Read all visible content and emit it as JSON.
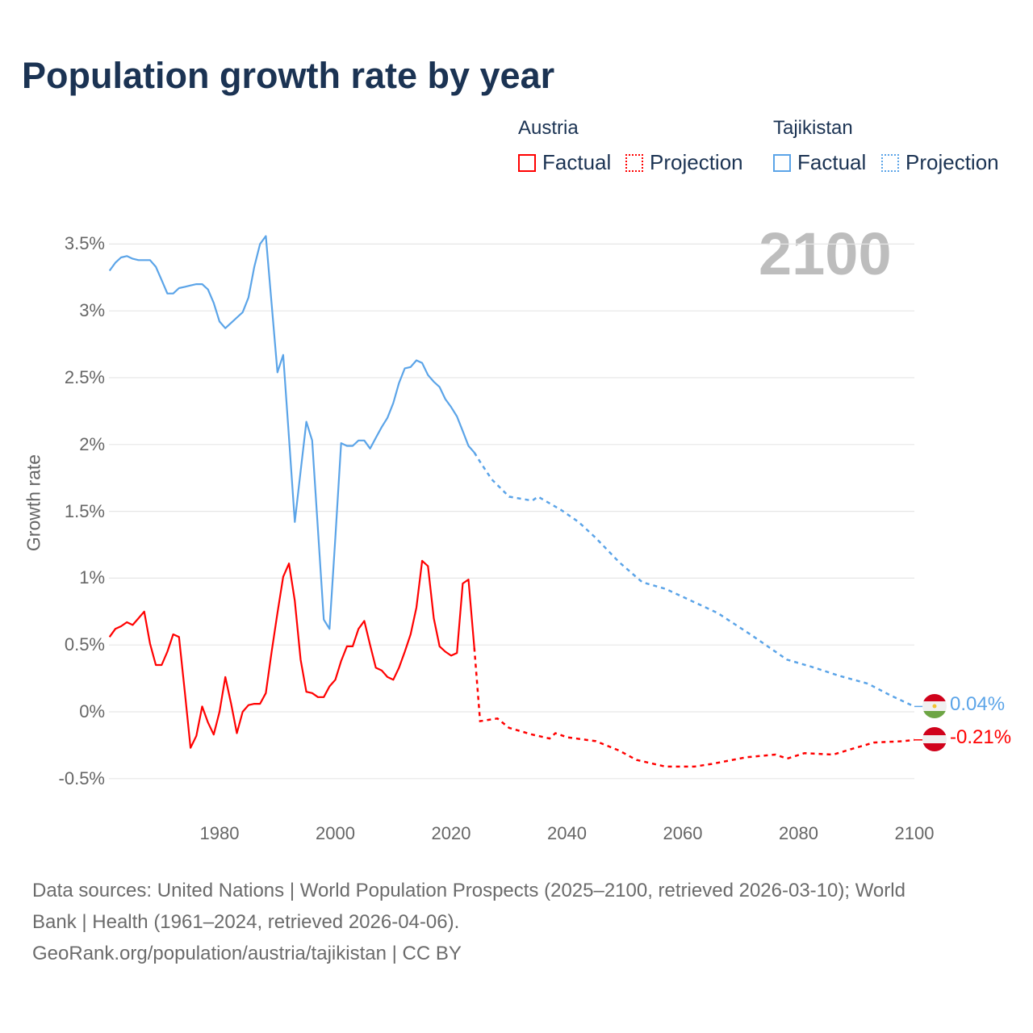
{
  "title": "Population growth rate by year",
  "legend": {
    "groups": [
      {
        "country": "Austria",
        "factual": "Factual",
        "projection": "Projection",
        "color": "#ff0000"
      },
      {
        "country": "Tajikistan",
        "factual": "Factual",
        "projection": "Projection",
        "color": "#5ba4e8"
      }
    ]
  },
  "current_year_label": "2100",
  "end_labels": {
    "tajikistan": "0.04%",
    "austria": "-0.21%"
  },
  "footer": {
    "line1": "Data sources: United Nations | World Population Prospects (2025–2100, retrieved 2026-03-10); World",
    "line2": "Bank | Health (1961–2024, retrieved 2026-04-06).",
    "line3": "GeoRank.org/population/austria/tajikistan | CC BY"
  },
  "chart_data": {
    "type": "line",
    "title": "Population growth rate by year",
    "xlabel": "",
    "ylabel": "Growth rate",
    "xlim": [
      1961,
      2100
    ],
    "ylim": [
      -0.6,
      3.6
    ],
    "grid": true,
    "legend_position": "top-right",
    "x_ticks": [
      1980,
      2000,
      2020,
      2040,
      2060,
      2080,
      2100
    ],
    "x_tick_labels": [
      "1980",
      "2000",
      "2020",
      "2040",
      "2060",
      "2080",
      "2100"
    ],
    "y_ticks": [
      -0.5,
      0,
      0.5,
      1,
      1.5,
      2,
      2.5,
      3,
      3.5
    ],
    "y_tick_labels": [
      "-0.5%",
      "0%",
      "0.5%",
      "1%",
      "1.5%",
      "2%",
      "2.5%",
      "3%",
      "3.5%"
    ],
    "series": [
      {
        "name": "Austria",
        "color": "#ff0000",
        "factual_start": 1961,
        "factual": [
          0.56,
          0.62,
          0.64,
          0.67,
          0.65,
          0.7,
          0.75,
          0.51,
          0.35,
          0.35,
          0.45,
          0.58,
          0.56,
          0.15,
          -0.27,
          -0.18,
          0.04,
          -0.08,
          -0.17,
          0.0,
          0.26,
          0.06,
          -0.16,
          0.0,
          0.05,
          0.06,
          0.06,
          0.14,
          0.45,
          0.74,
          1.01,
          1.11,
          0.83,
          0.39,
          0.15,
          0.14,
          0.11,
          0.11,
          0.19,
          0.24,
          0.38,
          0.49,
          0.49,
          0.62,
          0.68,
          0.5,
          0.33,
          0.31,
          0.26,
          0.24,
          0.33,
          0.45,
          0.58,
          0.78,
          1.13,
          1.09,
          0.7,
          0.49,
          0.45,
          0.42,
          0.44,
          0.96,
          0.99,
          0.48
        ],
        "projection": [
          [
            2024,
            0.48
          ],
          [
            2025,
            -0.07
          ],
          [
            2028,
            -0.05
          ],
          [
            2030,
            -0.12
          ],
          [
            2034,
            -0.17
          ],
          [
            2037,
            -0.2
          ],
          [
            2038,
            -0.16
          ],
          [
            2040,
            -0.19
          ],
          [
            2045,
            -0.22
          ],
          [
            2049,
            -0.29
          ],
          [
            2052,
            -0.36
          ],
          [
            2057,
            -0.41
          ],
          [
            2062,
            -0.41
          ],
          [
            2065,
            -0.39
          ],
          [
            2071,
            -0.34
          ],
          [
            2076,
            -0.32
          ],
          [
            2078,
            -0.35
          ],
          [
            2081,
            -0.31
          ],
          [
            2086,
            -0.32
          ],
          [
            2089,
            -0.28
          ],
          [
            2093,
            -0.23
          ],
          [
            2098,
            -0.22
          ],
          [
            2100,
            -0.21
          ]
        ]
      },
      {
        "name": "Tajikistan",
        "color": "#5ba4e8",
        "factual_start": 1961,
        "factual": [
          3.3,
          3.36,
          3.4,
          3.41,
          3.39,
          3.38,
          3.38,
          3.38,
          3.33,
          3.23,
          3.13,
          3.13,
          3.17,
          3.18,
          3.19,
          3.2,
          3.2,
          3.16,
          3.06,
          2.92,
          2.87,
          2.91,
          2.95,
          2.99,
          3.1,
          3.33,
          3.5,
          3.56,
          3.05,
          2.54,
          2.67,
          2.05,
          1.42,
          1.8,
          2.17,
          2.03,
          1.36,
          0.69,
          0.62,
          1.3,
          2.01,
          1.99,
          1.99,
          2.03,
          2.03,
          1.97,
          2.05,
          2.13,
          2.2,
          2.31,
          2.46,
          2.57,
          2.58,
          2.63,
          2.61,
          2.52,
          2.47,
          2.43,
          2.34,
          2.28,
          2.21,
          2.1,
          1.99,
          1.94
        ],
        "projection": [
          [
            2024,
            1.94
          ],
          [
            2025,
            1.87
          ],
          [
            2027,
            1.74
          ],
          [
            2030,
            1.61
          ],
          [
            2034,
            1.58
          ],
          [
            2035,
            1.61
          ],
          [
            2039,
            1.51
          ],
          [
            2042,
            1.42
          ],
          [
            2045,
            1.3
          ],
          [
            2049,
            1.12
          ],
          [
            2053,
            0.97
          ],
          [
            2057,
            0.92
          ],
          [
            2062,
            0.82
          ],
          [
            2066,
            0.74
          ],
          [
            2072,
            0.57
          ],
          [
            2075,
            0.48
          ],
          [
            2078,
            0.39
          ],
          [
            2082,
            0.34
          ],
          [
            2087,
            0.27
          ],
          [
            2092,
            0.21
          ],
          [
            2096,
            0.12
          ],
          [
            2100,
            0.04
          ]
        ]
      }
    ]
  }
}
